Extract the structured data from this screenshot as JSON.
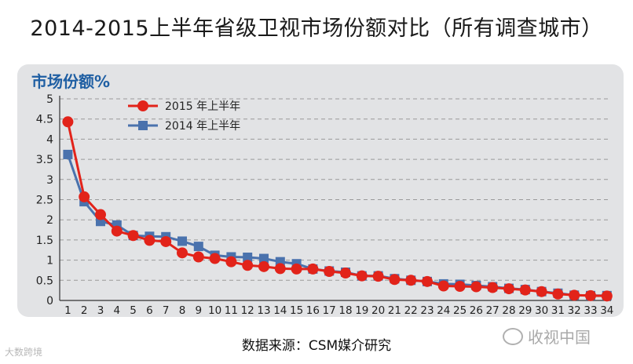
{
  "page": {
    "title": "2014-2015上半年省级卫视市场份额对比（所有调查城市）",
    "source": "数据来源：CSM媒介研究",
    "watermark_left": "大数跨境",
    "watermark_right": "收视中国"
  },
  "chart_data": {
    "type": "line",
    "title": "2014-2015上半年省级卫视市场份额对比（所有调查城市）",
    "xlabel": "",
    "ylabel": "市场份额%",
    "ylim": [
      0,
      5
    ],
    "yticks": [
      "0",
      "0.5",
      "1",
      "1.5",
      "2",
      "2.5",
      "3",
      "3.5",
      "4",
      "4.5",
      "5"
    ],
    "categories": [
      "1",
      "2",
      "3",
      "4",
      "5",
      "6",
      "7",
      "8",
      "9",
      "10",
      "11",
      "12",
      "13",
      "14",
      "15",
      "16",
      "17",
      "18",
      "19",
      "20",
      "21",
      "22",
      "23",
      "24",
      "25",
      "26",
      "27",
      "28",
      "29",
      "30",
      "31",
      "32",
      "33",
      "34"
    ],
    "grid": true,
    "legend_position": "top-left",
    "series": [
      {
        "name": "2015 年上半年",
        "color": "#e2231a",
        "marker": "circle",
        "values": [
          4.43,
          2.57,
          2.13,
          1.72,
          1.61,
          1.49,
          1.46,
          1.18,
          1.08,
          1.04,
          0.96,
          0.87,
          0.84,
          0.79,
          0.78,
          0.78,
          0.72,
          0.68,
          0.61,
          0.6,
          0.52,
          0.5,
          0.47,
          0.36,
          0.35,
          0.34,
          0.32,
          0.29,
          0.26,
          0.22,
          0.16,
          0.13,
          0.12,
          0.11
        ]
      },
      {
        "name": "2014 年上半年",
        "color": "#4a72ad",
        "marker": "square",
        "values": [
          3.62,
          2.45,
          1.96,
          1.87,
          1.61,
          1.59,
          1.58,
          1.47,
          1.34,
          1.12,
          1.08,
          1.07,
          1.04,
          0.96,
          0.91,
          0.78,
          0.73,
          0.7,
          0.61,
          0.61,
          0.54,
          0.5,
          0.47,
          0.41,
          0.4,
          0.37,
          0.34,
          0.3,
          0.27,
          0.22,
          0.18,
          0.13,
          0.12,
          0.12
        ]
      }
    ]
  }
}
